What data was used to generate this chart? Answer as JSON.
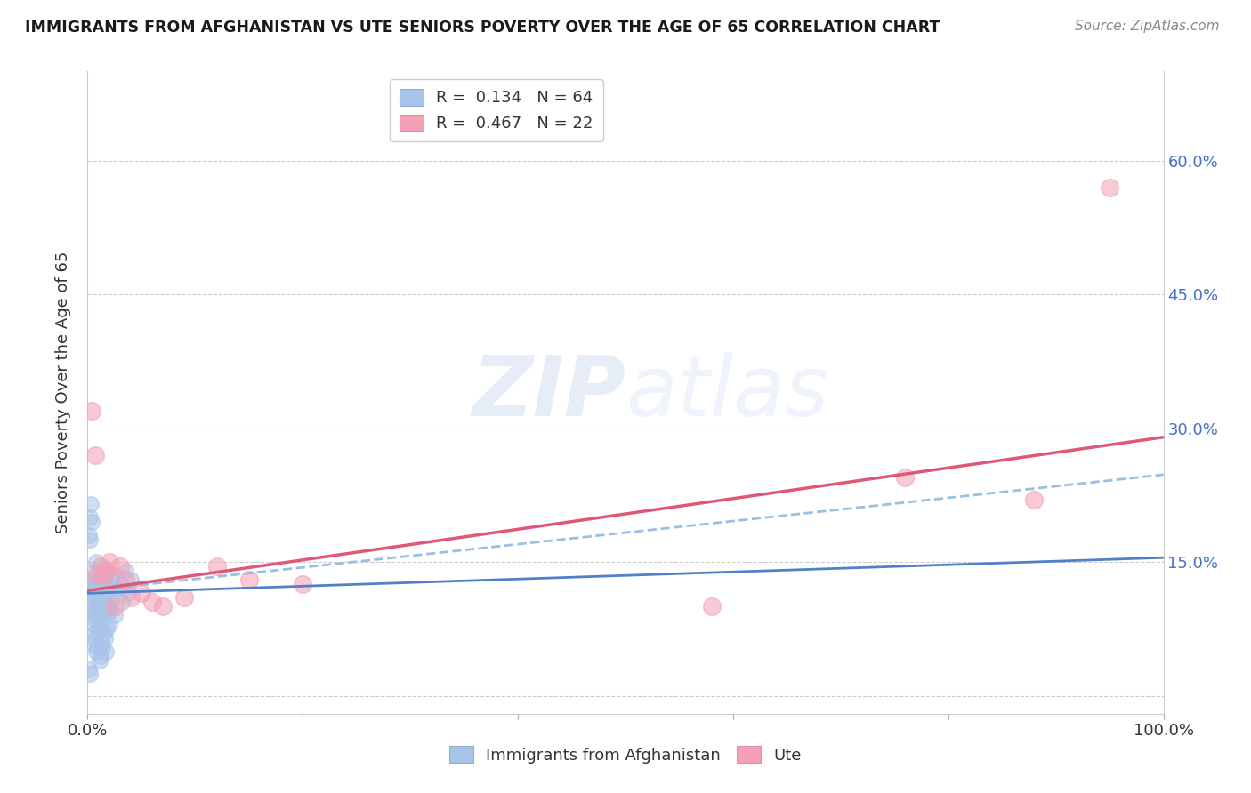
{
  "title": "IMMIGRANTS FROM AFGHANISTAN VS UTE SENIORS POVERTY OVER THE AGE OF 65 CORRELATION CHART",
  "source": "Source: ZipAtlas.com",
  "ylabel": "Seniors Poverty Over the Age of 65",
  "xlim": [
    0,
    1.0
  ],
  "ylim": [
    -0.02,
    0.7
  ],
  "yticks": [
    0.0,
    0.15,
    0.3,
    0.45,
    0.6
  ],
  "blue_color": "#a8c4e8",
  "pink_color": "#f4a0b5",
  "blue_line_color": "#5080c8",
  "pink_line_color": "#e05878",
  "blue_dashed_color": "#90b8e0",
  "watermark_color": "#dde8f5",
  "afg_x": [
    0.002,
    0.003,
    0.003,
    0.004,
    0.004,
    0.005,
    0.005,
    0.006,
    0.006,
    0.007,
    0.007,
    0.008,
    0.008,
    0.009,
    0.009,
    0.01,
    0.01,
    0.011,
    0.011,
    0.012,
    0.012,
    0.013,
    0.013,
    0.014,
    0.015,
    0.015,
    0.016,
    0.017,
    0.018,
    0.019,
    0.02,
    0.021,
    0.022,
    0.023,
    0.025,
    0.027,
    0.03,
    0.032,
    0.035,
    0.038,
    0.04,
    0.002,
    0.003,
    0.004,
    0.005,
    0.006,
    0.007,
    0.008,
    0.009,
    0.01,
    0.011,
    0.012,
    0.013,
    0.014,
    0.015,
    0.016,
    0.017,
    0.018,
    0.02,
    0.025,
    0.001,
    0.002,
    0.001,
    0.002
  ],
  "afg_y": [
    0.115,
    0.095,
    0.13,
    0.105,
    0.12,
    0.08,
    0.1,
    0.09,
    0.14,
    0.085,
    0.125,
    0.11,
    0.15,
    0.095,
    0.115,
    0.105,
    0.13,
    0.1,
    0.12,
    0.09,
    0.14,
    0.085,
    0.11,
    0.125,
    0.13,
    0.105,
    0.095,
    0.115,
    0.14,
    0.1,
    0.12,
    0.095,
    0.13,
    0.11,
    0.135,
    0.12,
    0.125,
    0.105,
    0.14,
    0.115,
    0.13,
    0.2,
    0.215,
    0.195,
    0.06,
    0.07,
    0.065,
    0.05,
    0.055,
    0.075,
    0.04,
    0.045,
    0.06,
    0.055,
    0.07,
    0.065,
    0.05,
    0.075,
    0.08,
    0.09,
    0.03,
    0.025,
    0.18,
    0.175
  ],
  "ute_x": [
    0.004,
    0.007,
    0.008,
    0.012,
    0.015,
    0.018,
    0.02,
    0.025,
    0.03,
    0.035,
    0.04,
    0.05,
    0.06,
    0.07,
    0.09,
    0.12,
    0.15,
    0.2,
    0.58,
    0.76,
    0.88,
    0.95
  ],
  "ute_y": [
    0.32,
    0.27,
    0.135,
    0.145,
    0.135,
    0.14,
    0.15,
    0.1,
    0.145,
    0.13,
    0.11,
    0.115,
    0.105,
    0.1,
    0.11,
    0.145,
    0.13,
    0.125,
    0.1,
    0.245,
    0.22,
    0.57
  ],
  "afg_line": [
    0.118,
    0.248
  ],
  "ute_line": [
    0.118,
    0.29
  ]
}
